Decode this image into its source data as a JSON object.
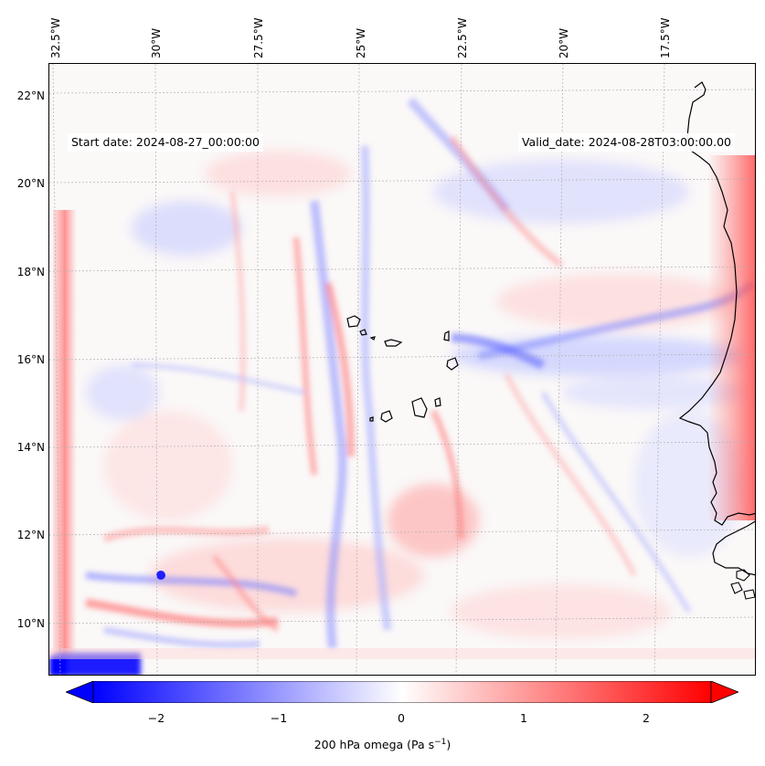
{
  "header": {
    "start_date": "Start date: 2024-08-27_00:00:00",
    "valid_date": "Valid_date: 2024-08-28T03:00:00.00"
  },
  "map": {
    "extent": {
      "lon_min": -33.0,
      "lon_max": -15.8,
      "lat_min": 8.8,
      "lat_max": 22.8
    },
    "longitude_ticks": [
      "32.5°W",
      "30°W",
      "27.5°W",
      "25°W",
      "22.5°W",
      "20°W",
      "17.5°W"
    ],
    "latitude_ticks": [
      "22°N",
      "20°N",
      "18°N",
      "16°N",
      "14°N",
      "12°N",
      "10°N"
    ],
    "gridlines": true,
    "field": "200 hPa vertical velocity (omega) shaded, diverging blue–white–red",
    "colors": {
      "negative": "#0000ff",
      "zero": "#ffffff",
      "positive": "#ff0000",
      "coast": "#000000"
    }
  },
  "colorbar": {
    "label_main": "200 hPa omega (Pa s",
    "label_exp": "−1",
    "label_close": ")",
    "ticks": [
      "−2",
      "−1",
      "0",
      "1",
      "2"
    ],
    "range": [
      -2.75,
      2.75
    ],
    "extend": "both"
  }
}
